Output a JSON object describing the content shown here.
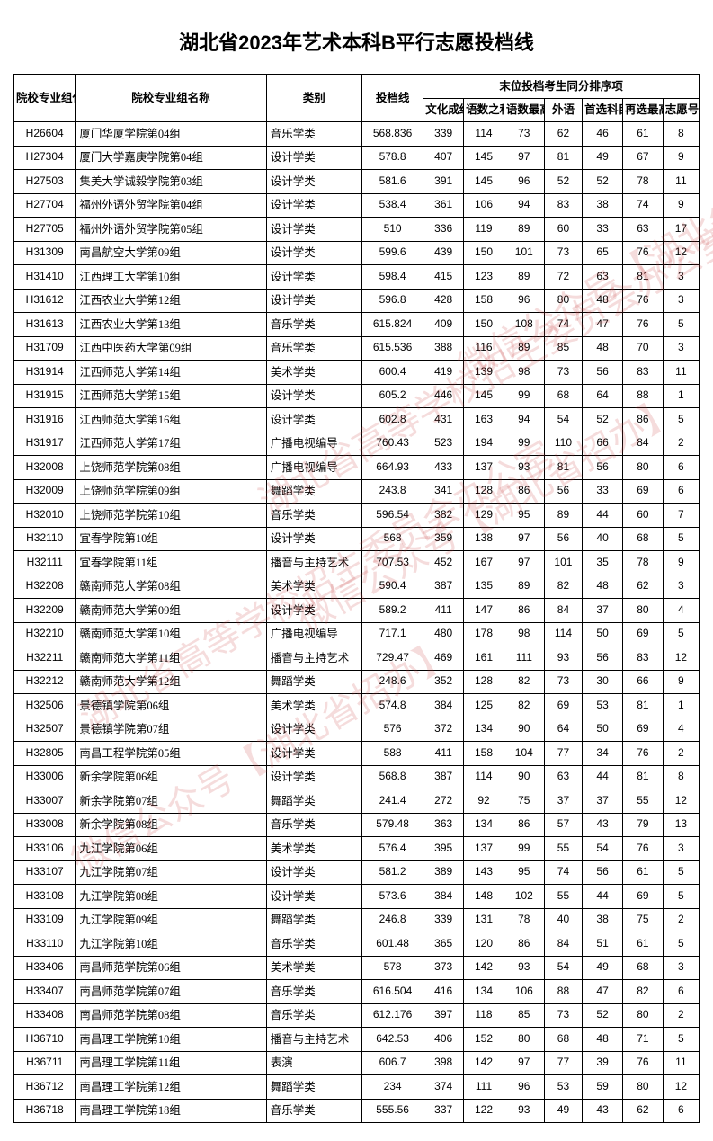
{
  "title": "湖北省2023年艺术本科B平行志愿投档线",
  "watermark_text_a": "湖北省高等学校招生委员会办公室",
  "watermark_text_b": "微信公众号【湖北省招办】",
  "headers": {
    "code": "院校专业组代号",
    "name": "院校专业组名称",
    "category": "类别",
    "score": "投档线",
    "tie_group": "末位投档考生同分排序项",
    "culture": "文化成绩",
    "sum": "语数之和",
    "max": "语数最高",
    "foreign": "外语",
    "first": "首选科目",
    "second": "再选最高",
    "wish": "志愿号"
  },
  "col_widths": {
    "code": 58,
    "name": 180,
    "category": 90,
    "score": 58,
    "culture": 38,
    "sum": 38,
    "max": 38,
    "foreign": 36,
    "first": 38,
    "second": 38,
    "wish": 34
  },
  "rows": [
    {
      "code": "H26604",
      "name": "厦门华厦学院第04组",
      "cat": "音乐学类",
      "score": "568.836",
      "c": "339",
      "s": "114",
      "m": "73",
      "f": "62",
      "p": "46",
      "r": "61",
      "w": "8"
    },
    {
      "code": "H27304",
      "name": "厦门大学嘉庚学院第04组",
      "cat": "设计学类",
      "score": "578.8",
      "c": "407",
      "s": "145",
      "m": "97",
      "f": "81",
      "p": "49",
      "r": "67",
      "w": "9"
    },
    {
      "code": "H27503",
      "name": "集美大学诚毅学院第03组",
      "cat": "设计学类",
      "score": "581.6",
      "c": "391",
      "s": "145",
      "m": "96",
      "f": "52",
      "p": "52",
      "r": "78",
      "w": "11"
    },
    {
      "code": "H27704",
      "name": "福州外语外贸学院第04组",
      "cat": "设计学类",
      "score": "538.4",
      "c": "361",
      "s": "106",
      "m": "94",
      "f": "83",
      "p": "38",
      "r": "74",
      "w": "9"
    },
    {
      "code": "H27705",
      "name": "福州外语外贸学院第05组",
      "cat": "设计学类",
      "score": "510",
      "c": "336",
      "s": "119",
      "m": "89",
      "f": "60",
      "p": "33",
      "r": "63",
      "w": "17"
    },
    {
      "code": "H31309",
      "name": "南昌航空大学第09组",
      "cat": "设计学类",
      "score": "599.6",
      "c": "439",
      "s": "150",
      "m": "101",
      "f": "73",
      "p": "65",
      "r": "76",
      "w": "12"
    },
    {
      "code": "H31410",
      "name": "江西理工大学第10组",
      "cat": "设计学类",
      "score": "598.4",
      "c": "415",
      "s": "123",
      "m": "89",
      "f": "72",
      "p": "63",
      "r": "81",
      "w": "3"
    },
    {
      "code": "H31612",
      "name": "江西农业大学第12组",
      "cat": "设计学类",
      "score": "596.8",
      "c": "428",
      "s": "158",
      "m": "96",
      "f": "80",
      "p": "48",
      "r": "76",
      "w": "3"
    },
    {
      "code": "H31613",
      "name": "江西农业大学第13组",
      "cat": "音乐学类",
      "score": "615.824",
      "c": "409",
      "s": "150",
      "m": "108",
      "f": "74",
      "p": "47",
      "r": "76",
      "w": "5"
    },
    {
      "code": "H31709",
      "name": "江西中医药大学第09组",
      "cat": "音乐学类",
      "score": "615.536",
      "c": "388",
      "s": "116",
      "m": "89",
      "f": "85",
      "p": "48",
      "r": "70",
      "w": "3"
    },
    {
      "code": "H31914",
      "name": "江西师范大学第14组",
      "cat": "美术学类",
      "score": "600.4",
      "c": "419",
      "s": "139",
      "m": "98",
      "f": "73",
      "p": "56",
      "r": "83",
      "w": "11"
    },
    {
      "code": "H31915",
      "name": "江西师范大学第15组",
      "cat": "设计学类",
      "score": "605.2",
      "c": "446",
      "s": "145",
      "m": "99",
      "f": "68",
      "p": "64",
      "r": "88",
      "w": "1"
    },
    {
      "code": "H31916",
      "name": "江西师范大学第16组",
      "cat": "设计学类",
      "score": "602.8",
      "c": "431",
      "s": "163",
      "m": "94",
      "f": "54",
      "p": "52",
      "r": "86",
      "w": "5"
    },
    {
      "code": "H31917",
      "name": "江西师范大学第17组",
      "cat": "广播电视编导",
      "score": "760.43",
      "c": "523",
      "s": "194",
      "m": "99",
      "f": "110",
      "p": "66",
      "r": "84",
      "w": "2"
    },
    {
      "code": "H32008",
      "name": "上饶师范学院第08组",
      "cat": "广播电视编导",
      "score": "664.93",
      "c": "433",
      "s": "137",
      "m": "93",
      "f": "81",
      "p": "56",
      "r": "80",
      "w": "6"
    },
    {
      "code": "H32009",
      "name": "上饶师范学院第09组",
      "cat": "舞蹈学类",
      "score": "243.8",
      "c": "341",
      "s": "128",
      "m": "86",
      "f": "56",
      "p": "33",
      "r": "69",
      "w": "6"
    },
    {
      "code": "H32010",
      "name": "上饶师范学院第10组",
      "cat": "音乐学类",
      "score": "596.54",
      "c": "382",
      "s": "129",
      "m": "95",
      "f": "89",
      "p": "44",
      "r": "60",
      "w": "7"
    },
    {
      "code": "H32110",
      "name": "宜春学院第10组",
      "cat": "设计学类",
      "score": "568",
      "c": "359",
      "s": "138",
      "m": "97",
      "f": "56",
      "p": "40",
      "r": "68",
      "w": "5"
    },
    {
      "code": "H32111",
      "name": "宜春学院第11组",
      "cat": "播音与主持艺术",
      "score": "707.53",
      "c": "452",
      "s": "167",
      "m": "97",
      "f": "101",
      "p": "35",
      "r": "78",
      "w": "9"
    },
    {
      "code": "H32208",
      "name": "赣南师范大学第08组",
      "cat": "美术学类",
      "score": "590.4",
      "c": "387",
      "s": "135",
      "m": "89",
      "f": "82",
      "p": "48",
      "r": "62",
      "w": "3"
    },
    {
      "code": "H32209",
      "name": "赣南师范大学第09组",
      "cat": "设计学类",
      "score": "589.2",
      "c": "411",
      "s": "147",
      "m": "86",
      "f": "84",
      "p": "37",
      "r": "80",
      "w": "4"
    },
    {
      "code": "H32210",
      "name": "赣南师范大学第10组",
      "cat": "广播电视编导",
      "score": "717.1",
      "c": "480",
      "s": "178",
      "m": "98",
      "f": "114",
      "p": "50",
      "r": "69",
      "w": "5"
    },
    {
      "code": "H32211",
      "name": "赣南师范大学第11组",
      "cat": "播音与主持艺术",
      "score": "729.47",
      "c": "469",
      "s": "161",
      "m": "111",
      "f": "93",
      "p": "56",
      "r": "83",
      "w": "12"
    },
    {
      "code": "H32212",
      "name": "赣南师范大学第12组",
      "cat": "舞蹈学类",
      "score": "248.6",
      "c": "352",
      "s": "128",
      "m": "82",
      "f": "73",
      "p": "30",
      "r": "66",
      "w": "9"
    },
    {
      "code": "H32506",
      "name": "景德镇学院第06组",
      "cat": "美术学类",
      "score": "574.8",
      "c": "384",
      "s": "125",
      "m": "82",
      "f": "69",
      "p": "53",
      "r": "81",
      "w": "1"
    },
    {
      "code": "H32507",
      "name": "景德镇学院第07组",
      "cat": "设计学类",
      "score": "576",
      "c": "372",
      "s": "134",
      "m": "90",
      "f": "64",
      "p": "50",
      "r": "69",
      "w": "4"
    },
    {
      "code": "H32805",
      "name": "南昌工程学院第05组",
      "cat": "设计学类",
      "score": "588",
      "c": "411",
      "s": "158",
      "m": "104",
      "f": "77",
      "p": "34",
      "r": "76",
      "w": "2"
    },
    {
      "code": "H33006",
      "name": "新余学院第06组",
      "cat": "设计学类",
      "score": "568.8",
      "c": "387",
      "s": "114",
      "m": "90",
      "f": "63",
      "p": "44",
      "r": "81",
      "w": "8"
    },
    {
      "code": "H33007",
      "name": "新余学院第07组",
      "cat": "舞蹈学类",
      "score": "241.4",
      "c": "272",
      "s": "92",
      "m": "75",
      "f": "37",
      "p": "37",
      "r": "55",
      "w": "12"
    },
    {
      "code": "H33008",
      "name": "新余学院第08组",
      "cat": "音乐学类",
      "score": "579.48",
      "c": "363",
      "s": "134",
      "m": "86",
      "f": "57",
      "p": "43",
      "r": "79",
      "w": "13"
    },
    {
      "code": "H33106",
      "name": "九江学院第06组",
      "cat": "美术学类",
      "score": "576.4",
      "c": "395",
      "s": "137",
      "m": "99",
      "f": "55",
      "p": "54",
      "r": "76",
      "w": "3"
    },
    {
      "code": "H33107",
      "name": "九江学院第07组",
      "cat": "设计学类",
      "score": "581.2",
      "c": "389",
      "s": "143",
      "m": "95",
      "f": "74",
      "p": "56",
      "r": "61",
      "w": "5"
    },
    {
      "code": "H33108",
      "name": "九江学院第08组",
      "cat": "设计学类",
      "score": "573.6",
      "c": "384",
      "s": "148",
      "m": "102",
      "f": "55",
      "p": "44",
      "r": "69",
      "w": "5"
    },
    {
      "code": "H33109",
      "name": "九江学院第09组",
      "cat": "舞蹈学类",
      "score": "246.8",
      "c": "339",
      "s": "131",
      "m": "78",
      "f": "40",
      "p": "38",
      "r": "75",
      "w": "2"
    },
    {
      "code": "H33110",
      "name": "九江学院第10组",
      "cat": "音乐学类",
      "score": "601.48",
      "c": "365",
      "s": "120",
      "m": "86",
      "f": "84",
      "p": "51",
      "r": "61",
      "w": "5"
    },
    {
      "code": "H33406",
      "name": "南昌师范学院第06组",
      "cat": "美术学类",
      "score": "578",
      "c": "373",
      "s": "142",
      "m": "93",
      "f": "54",
      "p": "49",
      "r": "68",
      "w": "3"
    },
    {
      "code": "H33407",
      "name": "南昌师范学院第07组",
      "cat": "音乐学类",
      "score": "616.504",
      "c": "416",
      "s": "134",
      "m": "106",
      "f": "88",
      "p": "47",
      "r": "82",
      "w": "6"
    },
    {
      "code": "H33408",
      "name": "南昌师范学院第08组",
      "cat": "音乐学类",
      "score": "612.176",
      "c": "397",
      "s": "118",
      "m": "85",
      "f": "73",
      "p": "52",
      "r": "80",
      "w": "2"
    },
    {
      "code": "H36710",
      "name": "南昌理工学院第10组",
      "cat": "播音与主持艺术",
      "score": "642.53",
      "c": "406",
      "s": "152",
      "m": "80",
      "f": "68",
      "p": "48",
      "r": "71",
      "w": "5"
    },
    {
      "code": "H36711",
      "name": "南昌理工学院第11组",
      "cat": "表演",
      "score": "606.7",
      "c": "398",
      "s": "142",
      "m": "97",
      "f": "77",
      "p": "39",
      "r": "76",
      "w": "11"
    },
    {
      "code": "H36712",
      "name": "南昌理工学院第12组",
      "cat": "舞蹈学类",
      "score": "234",
      "c": "374",
      "s": "111",
      "m": "96",
      "f": "53",
      "p": "59",
      "r": "80",
      "w": "12"
    },
    {
      "code": "H36718",
      "name": "南昌理工学院第18组",
      "cat": "音乐学类",
      "score": "555.56",
      "c": "337",
      "s": "122",
      "m": "93",
      "f": "49",
      "p": "43",
      "r": "62",
      "w": "6"
    }
  ]
}
